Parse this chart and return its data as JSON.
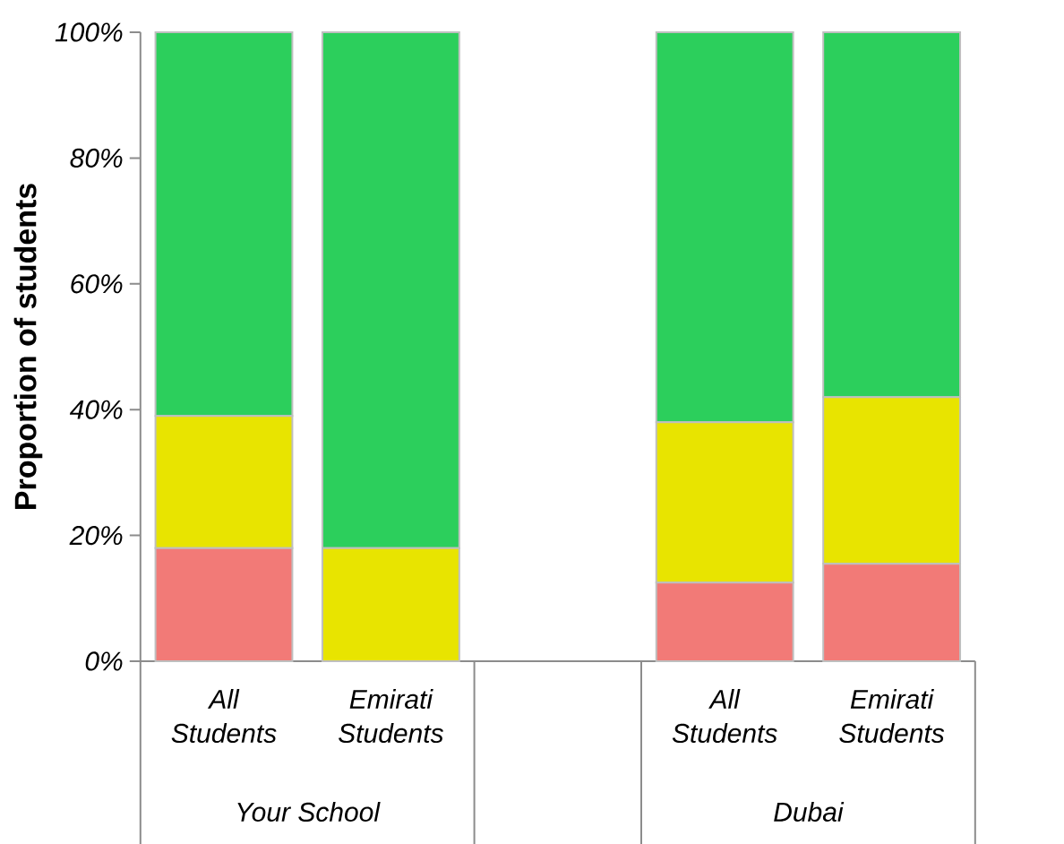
{
  "chart_data": {
    "type": "bar",
    "stacked": true,
    "ylabel": "Proportion of students",
    "categories": [
      "All Students",
      "Emirati Students",
      null,
      "All Students",
      "Emirati Students"
    ],
    "series": [
      {
        "color": "#f27a77",
        "values": [
          18,
          0,
          null,
          12.5,
          15.5
        ]
      },
      {
        "color": "#e8e400",
        "values": [
          21,
          18,
          null,
          25.5,
          26.5
        ]
      },
      {
        "color": "#2ccf5c",
        "values": [
          61,
          82,
          null,
          62,
          58
        ]
      }
    ],
    "ylim": [
      0,
      100
    ],
    "yticks": [
      {
        "value": 0,
        "label": "0%"
      },
      {
        "value": 20,
        "label": "20%"
      },
      {
        "value": 40,
        "label": "40%"
      },
      {
        "value": 60,
        "label": "60%"
      },
      {
        "value": 80,
        "label": "80%"
      },
      {
        "value": 100,
        "label": "100%"
      }
    ],
    "annotations": [
      "Your School",
      "Dubai"
    ]
  }
}
